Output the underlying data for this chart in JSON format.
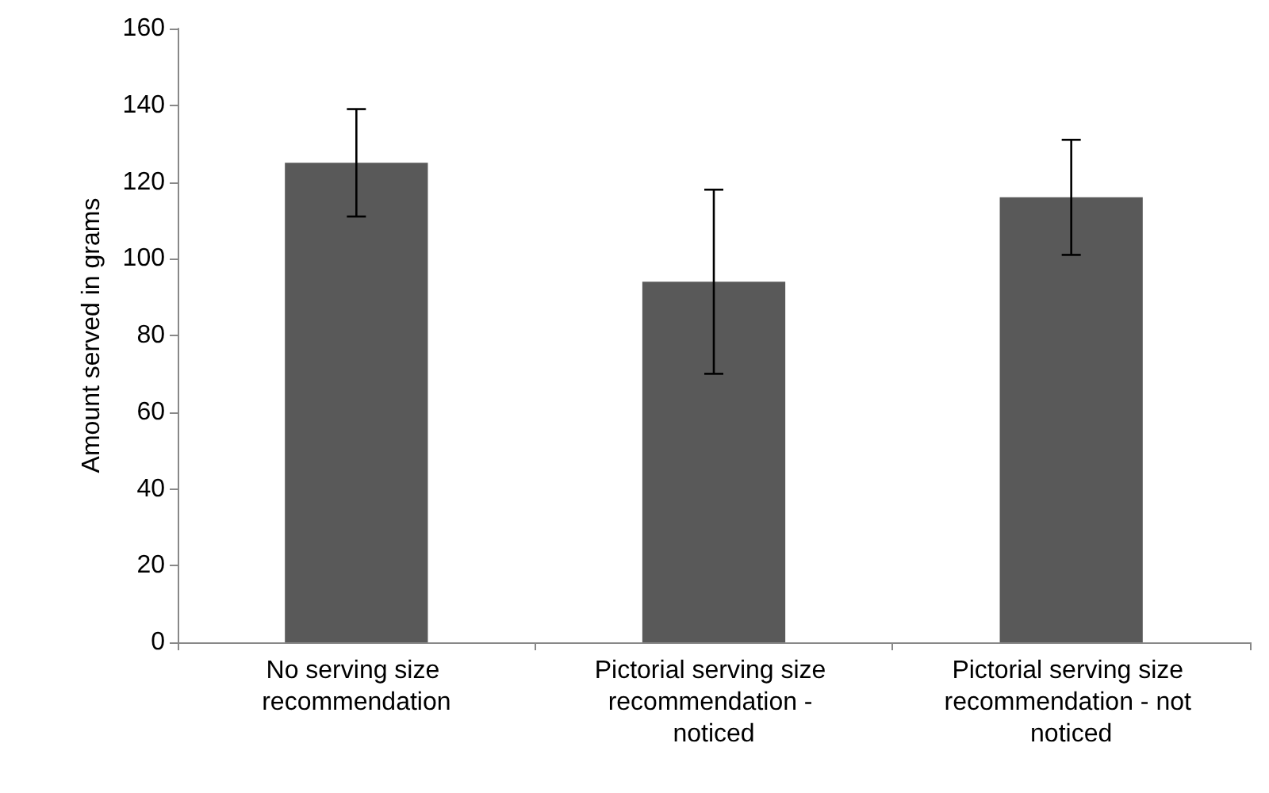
{
  "chart_data": {
    "type": "bar",
    "ylabel": "Amount served in grams",
    "categories": [
      "No serving size recommendation",
      "Pictorial serving size recommendation - noticed",
      "Pictorial serving size recommendation - not noticed"
    ],
    "values": [
      125,
      94,
      116
    ],
    "errors": [
      14,
      24,
      15
    ],
    "color": "#595959",
    "ylim": [
      0,
      160
    ],
    "yticks": [
      0,
      20,
      40,
      60,
      80,
      100,
      120,
      140,
      160
    ],
    "grid": false
  }
}
